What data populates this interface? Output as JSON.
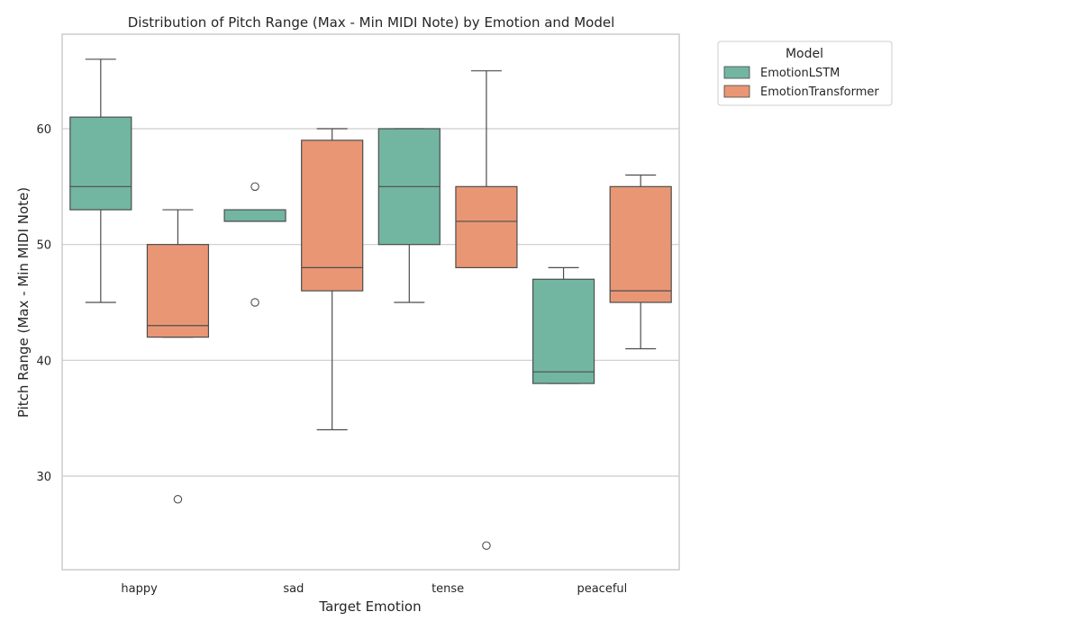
{
  "chart_data": {
    "type": "boxplot",
    "title": "Distribution of Pitch Range (Max - Min MIDI Note) by Emotion and Model",
    "xlabel": "Target Emotion",
    "ylabel": "Pitch Range (Max - Min MIDI Note)",
    "categories": [
      "happy",
      "sad",
      "tense",
      "peaceful"
    ],
    "ylim": [
      22,
      68
    ],
    "yticks": [
      30,
      40,
      50,
      60
    ],
    "grid": "horizontal",
    "legend": {
      "title": "Model",
      "placement": "outside-top-right"
    },
    "series": [
      {
        "name": "EmotionLSTM",
        "color": "#72b6a1",
        "boxes": [
          {
            "category": "happy",
            "whisker_low": 45,
            "q1": 53,
            "median": 55,
            "q3": 61,
            "whisker_high": 66,
            "outliers": []
          },
          {
            "category": "sad",
            "whisker_low": 52,
            "q1": 52,
            "median": 52,
            "q3": 53,
            "whisker_high": 53,
            "outliers": [
              45,
              55
            ]
          },
          {
            "category": "tense",
            "whisker_low": 45,
            "q1": 50,
            "median": 55,
            "q3": 60,
            "whisker_high": 60,
            "outliers": []
          },
          {
            "category": "peaceful",
            "whisker_low": 38,
            "q1": 38,
            "median": 39,
            "q3": 47,
            "whisker_high": 48,
            "outliers": []
          }
        ]
      },
      {
        "name": "EmotionTransformer",
        "color": "#e99675",
        "boxes": [
          {
            "category": "happy",
            "whisker_low": 42,
            "q1": 42,
            "median": 43,
            "q3": 50,
            "whisker_high": 53,
            "outliers": [
              28
            ]
          },
          {
            "category": "sad",
            "whisker_low": 34,
            "q1": 46,
            "median": 48,
            "q3": 59,
            "whisker_high": 60,
            "outliers": []
          },
          {
            "category": "tense",
            "whisker_low": 48,
            "q1": 48,
            "median": 52,
            "q3": 55,
            "whisker_high": 65,
            "outliers": [
              24
            ]
          },
          {
            "category": "peaceful",
            "whisker_low": 41,
            "q1": 45,
            "median": 46,
            "q3": 55,
            "whisker_high": 56,
            "outliers": []
          }
        ]
      }
    ]
  }
}
